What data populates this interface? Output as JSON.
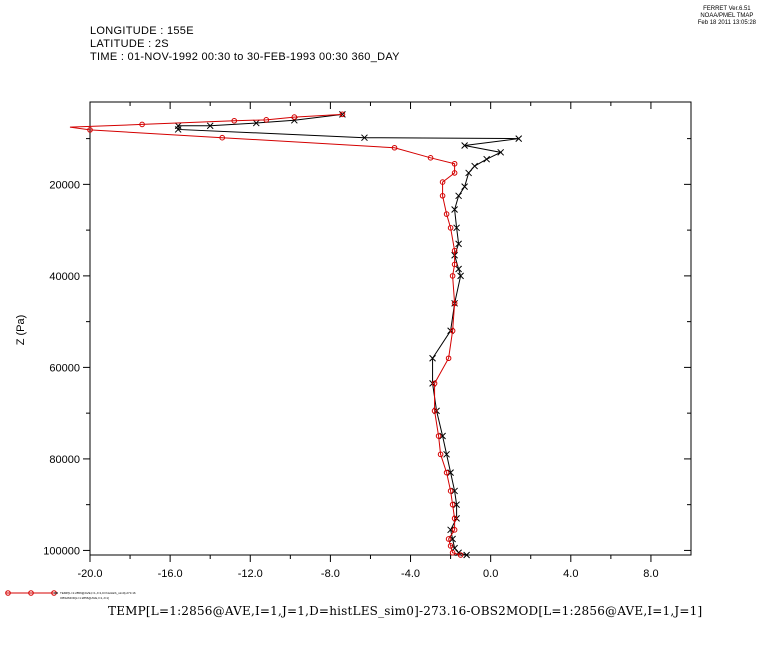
{
  "header": {
    "longitude": "LONGITUDE : 155E",
    "latitude": "LATITUDE : 2S",
    "time": "TIME : 01-NOV-1992 00:30 to 30-FEB-1993 00:30 360_DAY"
  },
  "stamp": {
    "line1": "FERRET  Ver.6.51",
    "line2": "NOAA/PMEL TMAP",
    "line3": "Feb 18 2011 13:05:28"
  },
  "bottom_title": "TEMP[L=1:2856@AVE,I=1,J=1,D=histLES_sim0]-273.16-OBS2MOD[L=1:2856@AVE,I=1,J=1]",
  "legend": {
    "line1": "TEMP[L=1:2856@AVE,I=1,J=1,D=histLES_sim0]-273.16",
    "line2": "OBS2MOD[L=1:2856@AVE,I=1,J=1]"
  },
  "chart_data": {
    "type": "line",
    "xlabel": "",
    "ylabel": "Z (Pa)",
    "xlim": [
      -20,
      10
    ],
    "ylim": [
      101000,
      2000
    ],
    "y_inverted": true,
    "xticks": [
      "-20.0",
      "-16.0",
      "-12.0",
      "-8.0",
      "-4.0",
      "0.0",
      "4.0",
      "8.0"
    ],
    "xtick_values": [
      -20,
      -16,
      -12,
      -8,
      -4,
      0,
      4,
      8
    ],
    "yticks": [
      "20000",
      "40000",
      "60000",
      "80000",
      "100000"
    ],
    "ytick_values": [
      20000,
      40000,
      60000,
      80000,
      100000
    ],
    "series": [
      {
        "name": "",
        "color": "#000000",
        "marker": "x",
        "x": [
          -7.4,
          -9.8,
          -11.7,
          -14.0,
          -15.6,
          -15.6,
          -6.3,
          1.4,
          -1.3,
          0.5,
          -0.2,
          -0.8,
          -1.1,
          -1.3,
          -1.6,
          -1.8,
          -1.7,
          -1.6,
          -1.8,
          -1.6,
          -1.5,
          -1.8,
          -2.0,
          -2.9,
          -2.9,
          -2.7,
          -2.4,
          -2.2,
          -2.0,
          -1.8,
          -1.7,
          -1.7,
          -2.0,
          -1.9,
          -1.8,
          -1.6,
          -1.2
        ],
        "y": [
          4700,
          6000,
          6600,
          7200,
          7200,
          8000,
          9800,
          10000,
          11500,
          13000,
          14500,
          16000,
          17500,
          20500,
          22500,
          25500,
          29500,
          33000,
          35500,
          38500,
          40000,
          46000,
          52000,
          58000,
          63500,
          69500,
          75000,
          79000,
          83000,
          87000,
          90000,
          93000,
          95500,
          97500,
          99500,
          100500,
          101000
        ]
      },
      {
        "name": "",
        "color": "#d40000",
        "marker": "o",
        "x": [
          -7.4,
          -9.8,
          -11.2,
          -12.8,
          -17.4,
          -21.0,
          -20.0,
          -13.4,
          -4.8,
          -3.0,
          -1.8,
          -1.8,
          -2.4,
          -2.4,
          -2.2,
          -2.0,
          -1.8,
          -1.8,
          -1.9,
          -1.8,
          -1.9,
          -2.1,
          -2.8,
          -2.8,
          -2.6,
          -2.5,
          -2.2,
          -2.0,
          -1.9,
          -1.8,
          -1.8,
          -2.1,
          -2.0,
          -1.9,
          -1.5
        ],
        "y": [
          4700,
          5300,
          5900,
          6100,
          6900,
          7500,
          8100,
          9800,
          12000,
          14200,
          15500,
          17500,
          19500,
          22500,
          26500,
          29500,
          34500,
          37500,
          40000,
          46000,
          52000,
          58000,
          63500,
          69500,
          75000,
          79000,
          83000,
          87000,
          90000,
          93000,
          95500,
          97500,
          99000,
          100500,
          101000
        ]
      }
    ]
  }
}
